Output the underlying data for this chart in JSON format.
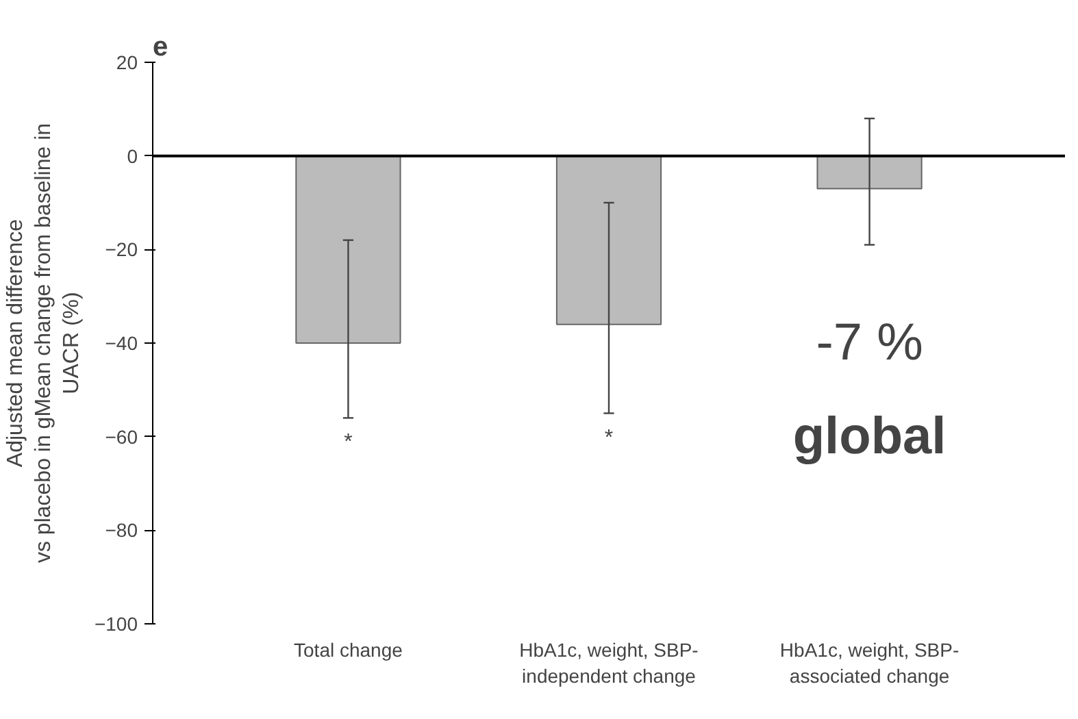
{
  "chart_data": {
    "type": "bar",
    "ylabel": "Adjusted mean difference\nvs placebo in gMean change from baseline in\nUACR (%)",
    "categories": [
      "Total change",
      "HbA1c, weight, SBP-\nindependent change",
      "HbA1c, weight, SBP-\nassociated change"
    ],
    "values": [
      -40,
      -36,
      -7
    ],
    "color": "#bbbbbb",
    "errors": [
      [
        -56,
        -18
      ],
      [
        -55,
        -10
      ],
      [
        -19,
        8
      ]
    ],
    "ylim": [
      -100,
      20
    ],
    "yticks": [
      -100,
      -80,
      -60,
      -40,
      -20,
      0,
      20
    ],
    "ref_lines": [
      {
        "axis": "y",
        "value": 0,
        "color": "#000000"
      }
    ],
    "grid": false,
    "annotations": [
      "e",
      "*",
      "*",
      "-7 %",
      "global"
    ]
  }
}
